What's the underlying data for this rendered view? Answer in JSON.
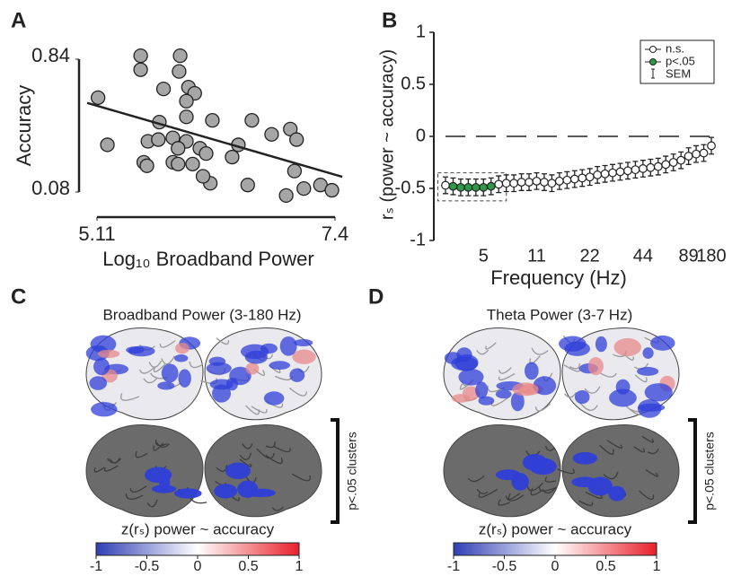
{
  "panel_labels": [
    "A",
    "B",
    "C",
    "D"
  ],
  "chart_data": [
    {
      "type": "scatter",
      "ylabel": "Accuracy",
      "xlabel": "Log₁₀ Broadband Power",
      "xlim": [
        5.11,
        7.4
      ],
      "xticks": [
        5.11,
        7.4
      ],
      "ylim": [
        0.08,
        0.84
      ],
      "yticks": [
        0.08,
        0.84
      ],
      "color": "#a6a6a6",
      "x": [
        5.12,
        5.21,
        5.53,
        5.91,
        5.53,
        5.9,
        5.75,
        5.99,
        6.05,
        5.97,
        5.71,
        5.97,
        6.22,
        6.6,
        6.97,
        5.6,
        5.7,
        5.84,
        5.97,
        5.89,
        6.47,
        6.1,
        6.79,
        7.03,
        5.84,
        5.89,
        6.03,
        5.56,
        5.59,
        6.16,
        6.41,
        6.2,
        6.13,
        6.56,
        7.01,
        6.93,
        7.1,
        7.26,
        7.37
      ],
      "y": [
        0.62,
        0.35,
        0.86,
        0.86,
        0.78,
        0.77,
        0.67,
        0.68,
        0.645,
        0.6,
        0.48,
        0.51,
        0.49,
        0.49,
        0.44,
        0.37,
        0.38,
        0.39,
        0.37,
        0.33,
        0.35,
        0.33,
        0.41,
        0.38,
        0.25,
        0.24,
        0.24,
        0.25,
        0.23,
        0.3,
        0.28,
        0.13,
        0.17,
        0.12,
        0.2,
        0.06,
        0.1,
        0.12,
        0.09
      ],
      "fit_line": {
        "x": [
          5.015,
          7.47
        ],
        "y": [
          0.59,
          0.167
        ]
      }
    },
    {
      "type": "line",
      "ylabel": "rₛ (power ~ accuracy)",
      "xlabel": "Frequency (Hz)",
      "categories": [
        null,
        null,
        null,
        null,
        null,
        "5",
        null,
        null,
        null,
        null,
        null,
        null,
        "11",
        null,
        null,
        null,
        null,
        null,
        null,
        "22",
        null,
        null,
        null,
        null,
        null,
        null,
        "44",
        null,
        null,
        null,
        null,
        null,
        "89",
        null,
        null,
        "180"
      ],
      "ylim": [
        -1,
        1
      ],
      "yticks": [
        -1,
        -0.5,
        0,
        0.5,
        1
      ],
      "zero_line": true,
      "sem_label": "SEM",
      "series": [
        {
          "name": "n.s.",
          "color": "#ffffff",
          "values": [
            -0.47,
            null,
            null,
            null,
            null,
            null,
            null,
            -0.46,
            -0.45,
            -0.45,
            -0.44,
            -0.44,
            -0.43,
            -0.44,
            -0.45,
            -0.43,
            -0.42,
            -0.41,
            -0.4,
            -0.39,
            -0.37,
            -0.36,
            -0.35,
            -0.34,
            -0.33,
            -0.32,
            -0.31,
            -0.3,
            -0.29,
            -0.27,
            -0.25,
            -0.23,
            -0.19,
            -0.17,
            -0.16,
            -0.09
          ],
          "errors": [
            0.08,
            null,
            null,
            null,
            null,
            null,
            null,
            0.08,
            0.08,
            0.08,
            0.08,
            0.08,
            0.08,
            0.08,
            0.08,
            0.08,
            0.08,
            0.08,
            0.08,
            0.08,
            0.08,
            0.08,
            0.08,
            0.08,
            0.08,
            0.08,
            0.08,
            0.08,
            0.08,
            0.08,
            0.08,
            0.08,
            0.08,
            0.08,
            0.08,
            0.08
          ]
        },
        {
          "name": "p<.05",
          "color": "#2e9a48",
          "values": [
            null,
            -0.48,
            -0.49,
            -0.49,
            -0.49,
            -0.49,
            -0.48,
            null,
            null,
            null,
            null,
            null,
            null,
            null,
            null,
            null,
            null,
            null,
            null,
            null,
            null,
            null,
            null,
            null,
            null,
            null,
            null,
            null,
            null,
            null,
            null,
            null,
            null,
            null,
            null,
            null
          ],
          "errors": [
            null,
            0.08,
            0.08,
            0.08,
            0.08,
            0.08,
            0.08,
            null,
            null,
            null,
            null,
            null,
            null,
            null,
            null,
            null,
            null,
            null,
            null,
            null,
            null,
            null,
            null,
            null,
            null,
            null,
            null,
            null,
            null,
            null,
            null,
            null,
            null,
            null,
            null,
            null
          ]
        }
      ]
    }
  ],
  "brain_maps": [
    {
      "title": "Broadband Power (3-180 Hz)",
      "colorbar_label": "z(rₛ) power ~ accuracy",
      "cluster_label": "p<.05 clusters",
      "clim": [
        -1,
        1
      ],
      "colorbar_ticks": [
        -1,
        -0.5,
        0,
        0.5,
        1
      ],
      "colormap": [
        "#2f3fb5",
        "#ffffff",
        "#e8202a"
      ]
    },
    {
      "title": "Theta Power (3-7 Hz)",
      "colorbar_label": "z(rₛ) power ~ accuracy",
      "cluster_label": "p<.05 clusters",
      "clim": [
        -1,
        1
      ],
      "colorbar_ticks": [
        -1,
        -0.5,
        0,
        0.5,
        1
      ],
      "colormap": [
        "#2f3fb5",
        "#ffffff",
        "#e8202a"
      ]
    }
  ]
}
